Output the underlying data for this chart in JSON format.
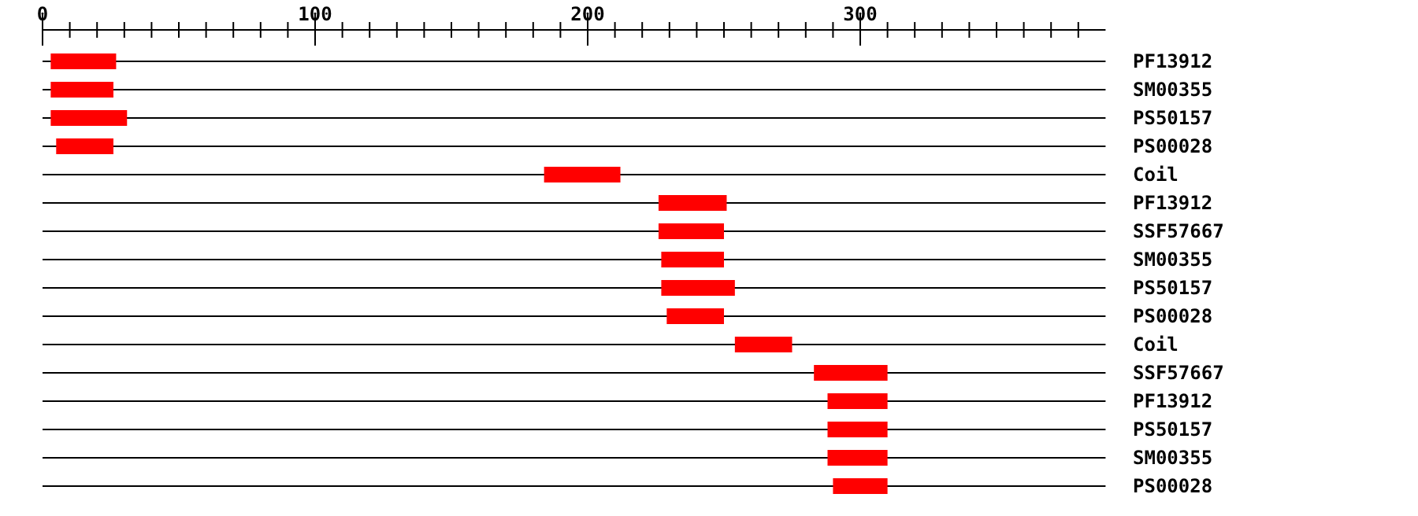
{
  "chart_data": {
    "type": "bar",
    "orientation": "horizontal",
    "categories": [
      "PF13912",
      "SM00355",
      "PS50157",
      "PS00028",
      "Coil",
      "PF13912",
      "SSF57667",
      "SM00355",
      "PS50157",
      "PS00028",
      "Coil",
      "SSF57667",
      "PF13912",
      "PS50157",
      "SM00355",
      "PS00028"
    ],
    "base": [
      3,
      3,
      3,
      5,
      184,
      226,
      226,
      227,
      227,
      229,
      254,
      283,
      288,
      288,
      288,
      290
    ],
    "values": [
      24,
      23,
      28,
      21,
      28,
      25,
      24,
      23,
      27,
      21,
      21,
      27,
      22,
      22,
      22,
      20
    ],
    "color": "#ff0000",
    "xlim": [
      0,
      390
    ],
    "xticks": [
      0,
      {
        "value": 10,
        "label": null
      },
      {
        "value": 20,
        "label": null
      },
      {
        "value": 30,
        "label": null
      },
      {
        "value": 40,
        "label": null
      },
      {
        "value": 50,
        "label": null
      },
      {
        "value": 60,
        "label": null
      },
      {
        "value": 70,
        "label": null
      },
      {
        "value": 80,
        "label": null
      },
      {
        "value": 90,
        "label": null
      },
      100,
      {
        "value": 110,
        "label": null
      },
      {
        "value": 120,
        "label": null
      },
      {
        "value": 130,
        "label": null
      },
      {
        "value": 140,
        "label": null
      },
      {
        "value": 150,
        "label": null
      },
      {
        "value": 160,
        "label": null
      },
      {
        "value": 170,
        "label": null
      },
      {
        "value": 180,
        "label": null
      },
      {
        "value": 190,
        "label": null
      },
      200,
      {
        "value": 210,
        "label": null
      },
      {
        "value": 220,
        "label": null
      },
      {
        "value": 230,
        "label": null
      },
      {
        "value": 240,
        "label": null
      },
      {
        "value": 250,
        "label": null
      },
      {
        "value": 260,
        "label": null
      },
      {
        "value": 270,
        "label": null
      },
      {
        "value": 280,
        "label": null
      },
      {
        "value": 290,
        "label": null
      },
      300,
      {
        "value": 310,
        "label": null
      },
      {
        "value": 320,
        "label": null
      },
      {
        "value": 330,
        "label": null
      },
      {
        "value": 340,
        "label": null
      },
      {
        "value": 350,
        "label": null
      },
      {
        "value": 360,
        "label": null
      },
      {
        "value": 370,
        "label": null
      },
      {
        "value": 380,
        "label": null
      }
    ],
    "grid": "y"
  }
}
